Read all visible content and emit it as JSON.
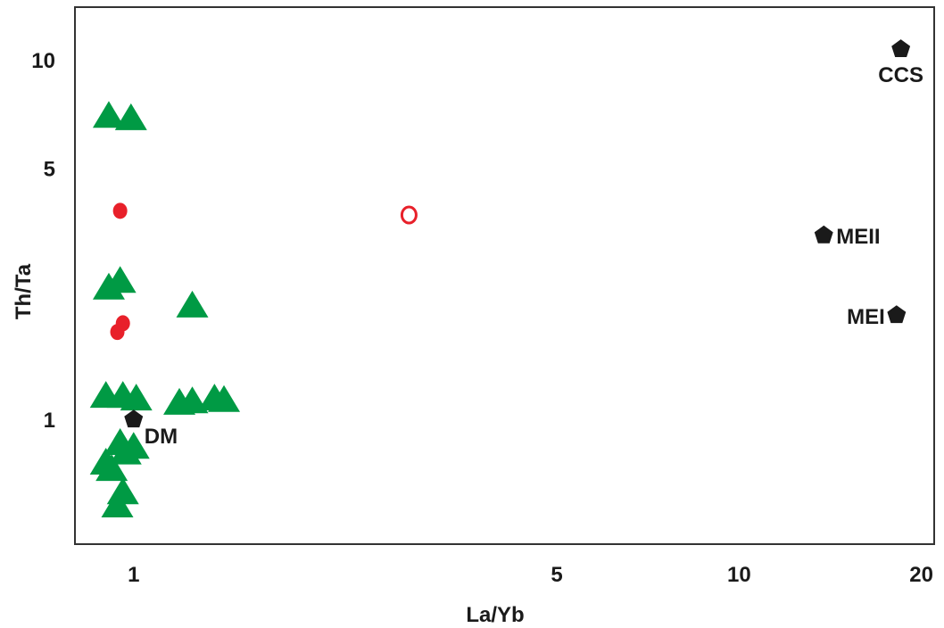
{
  "chart_data": {
    "type": "scatter",
    "title": "",
    "xlabel": "La/Yb",
    "ylabel": "Th/Ta",
    "x_scale": "log",
    "y_scale": "log",
    "xlim": [
      0.8,
      21
    ],
    "ylim": [
      0.45,
      14
    ],
    "x_ticks": [
      {
        "value": 1,
        "label": "1"
      },
      {
        "value": 5,
        "label": "5"
      },
      {
        "value": 10,
        "label": "10"
      },
      {
        "value": 20,
        "label": "20"
      }
    ],
    "y_ticks": [
      {
        "value": 1,
        "label": "1"
      },
      {
        "value": 5,
        "label": "5"
      },
      {
        "value": 10,
        "label": "10"
      }
    ],
    "grid": false,
    "legend": null,
    "series": [
      {
        "marker": "triangle",
        "color": "#009a44",
        "points": [
          [
            0.91,
            6.9
          ],
          [
            0.99,
            6.8
          ],
          [
            0.91,
            2.3
          ],
          [
            0.95,
            2.4
          ],
          [
            1.25,
            2.05
          ],
          [
            0.9,
            1.15
          ],
          [
            0.96,
            1.15
          ],
          [
            1.01,
            1.13
          ],
          [
            1.19,
            1.1
          ],
          [
            1.25,
            1.11
          ],
          [
            1.36,
            1.13
          ],
          [
            1.41,
            1.12
          ],
          [
            0.95,
            0.85
          ],
          [
            0.97,
            0.8
          ],
          [
            1.0,
            0.83
          ],
          [
            0.9,
            0.75
          ],
          [
            0.92,
            0.72
          ],
          [
            0.96,
            0.62
          ],
          [
            0.94,
            0.57
          ]
        ]
      },
      {
        "marker": "filled-circle",
        "color": "#e8202a",
        "points": [
          [
            0.95,
            3.8
          ],
          [
            0.96,
            1.85
          ],
          [
            0.94,
            1.75
          ]
        ]
      },
      {
        "marker": "open-circle",
        "color": "#e8202a",
        "points": [
          [
            2.85,
            3.7
          ]
        ]
      }
    ],
    "reference_points": [
      {
        "label": "CCS",
        "x": 18.5,
        "y": 10.7
      },
      {
        "label": "MEII",
        "x": 13.8,
        "y": 3.25
      },
      {
        "label": "MEI",
        "x": 18.2,
        "y": 1.95
      },
      {
        "label": "DM",
        "x": 1.0,
        "y": 1.0
      }
    ],
    "colors": {
      "reference_marker": "#1a1a1a",
      "axis": "#333333"
    }
  }
}
